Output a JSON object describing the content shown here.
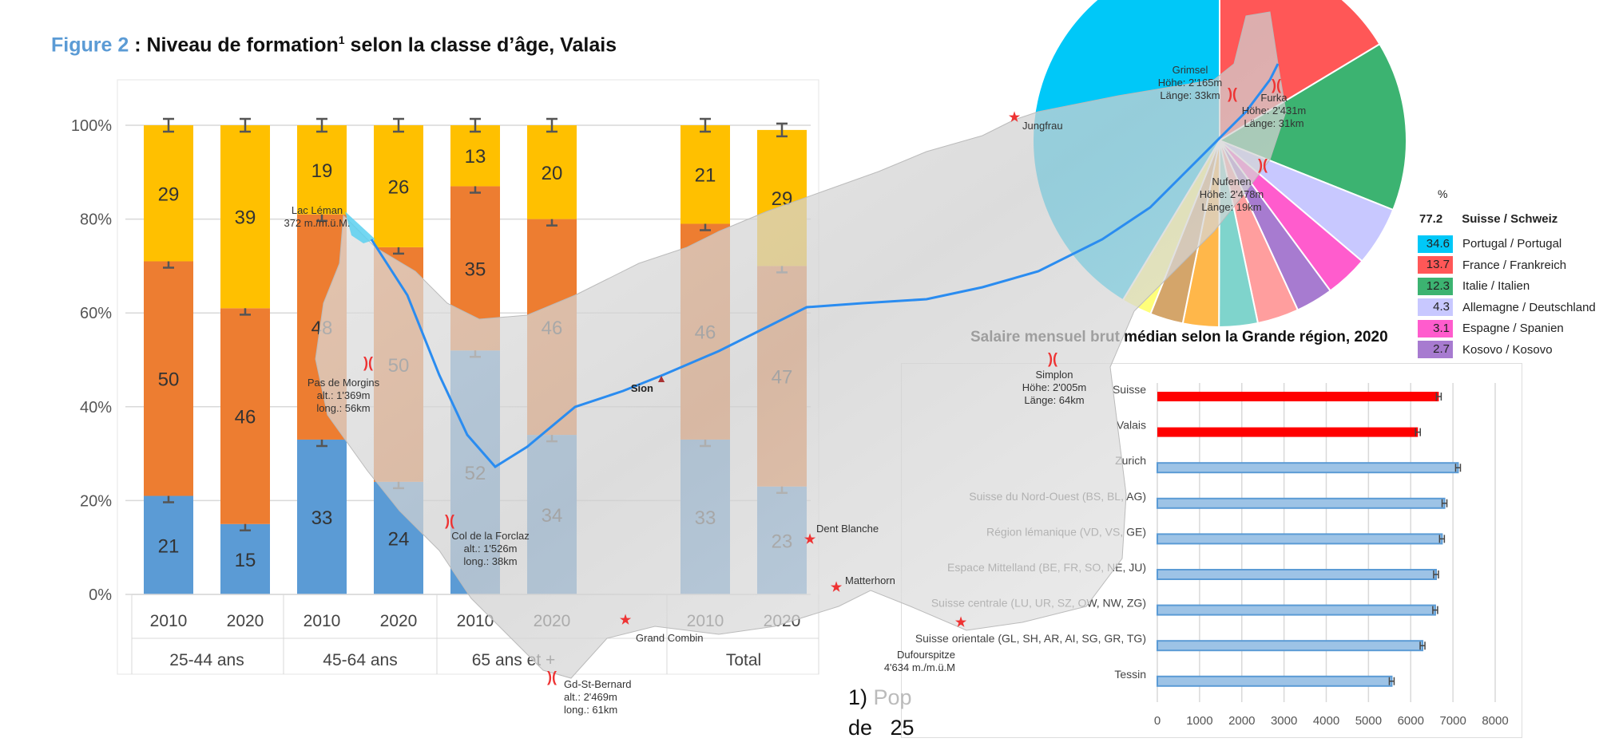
{
  "figure2": {
    "number": "Figure 2",
    "title_rest": " : Niveau de formation",
    "superscript": "1",
    "title_end": " selon la classe d’âge, Valais"
  },
  "chart_data": [
    {
      "type": "bar",
      "stacked": true,
      "percent": true,
      "ylim": [
        0,
        100
      ],
      "y_ticks": [
        "0%",
        "20%",
        "40%",
        "60%",
        "80%",
        "100%"
      ],
      "grid": true,
      "groups": [
        "25-44 ans",
        "45-64 ans",
        "65 ans et +",
        "Total"
      ],
      "categories": [
        "2010",
        "2020",
        "2010",
        "2020",
        "2010",
        "2020",
        "2010",
        "2020"
      ],
      "series": [
        {
          "color": "#5b9bd5",
          "values": [
            21,
            15,
            33,
            24,
            52,
            34,
            33,
            23
          ]
        },
        {
          "color": "#ed7d31",
          "values": [
            50,
            46,
            48,
            50,
            35,
            46,
            46,
            47
          ]
        },
        {
          "color": "#ffc000",
          "values": [
            29,
            39,
            19,
            26,
            13,
            20,
            21,
            29
          ]
        }
      ],
      "error_bars": true
    },
    {
      "type": "pie",
      "unit": "%",
      "header_value": "77.2",
      "header_label": "Suisse / Schweiz",
      "slices": [
        {
          "value": 34.6,
          "label": "Portugal / Portugal",
          "color": "#00c8f8"
        },
        {
          "value": 13.7,
          "label": "France / Frankreich",
          "color": "#ff5757"
        },
        {
          "value": 12.3,
          "label": "Italie / Italien",
          "color": "#3cb371"
        },
        {
          "value": 4.3,
          "label": "Allemagne / Deutschland",
          "color": "#c8c8ff"
        },
        {
          "value": 3.1,
          "label": "Espagne / Spanien",
          "color": "#ff5ccd"
        },
        {
          "value": 2.7,
          "label": "Kosovo / Kosovo",
          "color": "#a77bd0"
        }
      ],
      "unlabeled_slices": [
        {
          "value": 3.0,
          "color": "#ff9e9e"
        },
        {
          "value": 2.8,
          "color": "#7fd4cc"
        },
        {
          "value": 2.6,
          "color": "#ffb74a"
        },
        {
          "value": 2.4,
          "color": "#d4a56a"
        },
        {
          "value": 2.2,
          "color": "#ffff7a"
        }
      ]
    },
    {
      "type": "bar",
      "orientation": "horizontal",
      "title": "Salaire mensuel brut médian selon la Grande région, 2020",
      "xlim": [
        0,
        8000
      ],
      "x_ticks": [
        "0",
        "1000",
        "2000",
        "3000",
        "4000",
        "5000",
        "6000",
        "7000",
        "8000"
      ],
      "grid": true,
      "categories": [
        "Suisse",
        "Valais",
        "Zurich",
        "Suisse du Nord-Ouest (BS, BL, AG)",
        "Région lémanique (VD, VS, GE)",
        "Espace Mittelland (BE, FR, SO, NE, JU)",
        "Suisse centrale (LU, UR, SZ, OW, NW, ZG)",
        "Suisse orientale (GL, SH, AR, AI, SG, GR, TG)",
        "Tessin"
      ],
      "values": [
        6665,
        6170,
        7120,
        6800,
        6740,
        6600,
        6580,
        6280,
        5550
      ],
      "colors": [
        "#ff0000",
        "#ff0000",
        "#9dc3e6",
        "#9dc3e6",
        "#9dc3e6",
        "#9dc3e6",
        "#9dc3e6",
        "#9dc3e6",
        "#9dc3e6"
      ],
      "error_bars": true
    }
  ],
  "map": {
    "labels": {
      "leman": [
        "Lac Léman",
        "372 m./m.ü.M."
      ],
      "morgins": [
        "Pas de Morgins",
        "alt.: 1'369m",
        "long.: 56km"
      ],
      "forclaz": [
        "Col de la Forclaz",
        "alt.: 1'526m",
        "long.: 38km"
      ],
      "gsb": [
        "Gd-St-Bernard",
        "alt.: 2'469m",
        "long.: 61km"
      ],
      "combin": "Grand Combin",
      "sion": "Sion",
      "dentblanche": "Dent Blanche",
      "matterhorn": "Matterhorn",
      "dufour": [
        "Dufourspitze",
        "4'634 m./m.ü.M"
      ],
      "simplon": [
        "Simplon",
        "Höhe: 2'005m",
        "Länge: 64km"
      ],
      "nufenen": [
        "Nufenen",
        "Höhe: 2'478m",
        "Länge: 19km"
      ],
      "furka": [
        "Furka",
        "Höhe: 2'431m",
        "Länge: 31km"
      ],
      "grimsel": [
        "Grimsel",
        "Höhe: 2'165m",
        "Länge: 33km"
      ],
      "jungfrau": "Jungfrau"
    }
  },
  "footnote": {
    "line1_a": "1) ",
    "line1_b": "Pop",
    "line2": "de   25"
  }
}
